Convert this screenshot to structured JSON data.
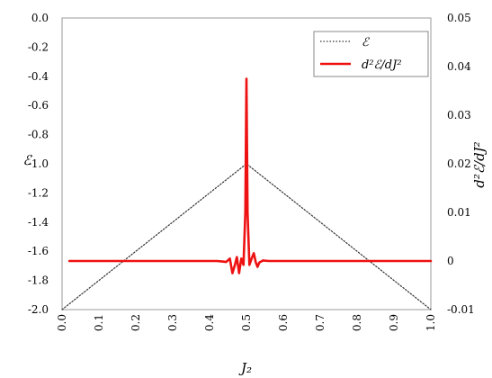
{
  "chart_data": {
    "type": "line",
    "xlabel": "J₂",
    "ylabel_left": "ℰ",
    "ylabel_right": "d²ℰ/dJ²",
    "x_ticks": [
      "0.0",
      "0.1",
      "0.2",
      "0.3",
      "0.4",
      "0.5",
      "0.6",
      "0.7",
      "0.8",
      "0.9",
      "1.0"
    ],
    "xlim": [
      0.0,
      1.0
    ],
    "ylim_left": [
      -2.0,
      0.0
    ],
    "y_ticks_left": [
      "0.0",
      "-0.2",
      "-0.4",
      "-0.6",
      "-0.8",
      "-1.0",
      "-1.2",
      "-1.4",
      "-1.6",
      "-1.8",
      "-2.0"
    ],
    "ylim_right": [
      -0.01,
      0.05
    ],
    "y_ticks_right": [
      "0.05",
      "0.04",
      "0.03",
      "0.02",
      "0.01",
      "0",
      "-0.01"
    ],
    "grid": false,
    "legend_position": "top-right",
    "series": [
      {
        "name": "ℰ",
        "axis": "left",
        "style": "dotted",
        "color": "#333333",
        "x": [
          0.0,
          0.5,
          1.0
        ],
        "y": [
          -2.0,
          -1.0,
          -2.0
        ]
      },
      {
        "name": "d²ℰ/dJ²",
        "axis": "right",
        "style": "solid",
        "color": "#ee1111",
        "x": [
          0.02,
          0.42,
          0.435,
          0.445,
          0.455,
          0.462,
          0.468,
          0.474,
          0.48,
          0.486,
          0.492,
          0.497,
          0.5,
          0.503,
          0.508,
          0.514,
          0.52,
          0.525,
          0.53,
          0.535,
          0.545,
          0.56,
          1.0
        ],
        "y": [
          0.0,
          0.0,
          -0.0001,
          -0.0002,
          0.0005,
          -0.0025,
          -0.001,
          0.0008,
          -0.0025,
          0.0005,
          -0.0008,
          0.01,
          0.0375,
          0.01,
          -0.0008,
          0.0005,
          0.0016,
          -0.0002,
          -0.0012,
          -0.0003,
          0.0001,
          0.0,
          0.0
        ]
      }
    ]
  }
}
